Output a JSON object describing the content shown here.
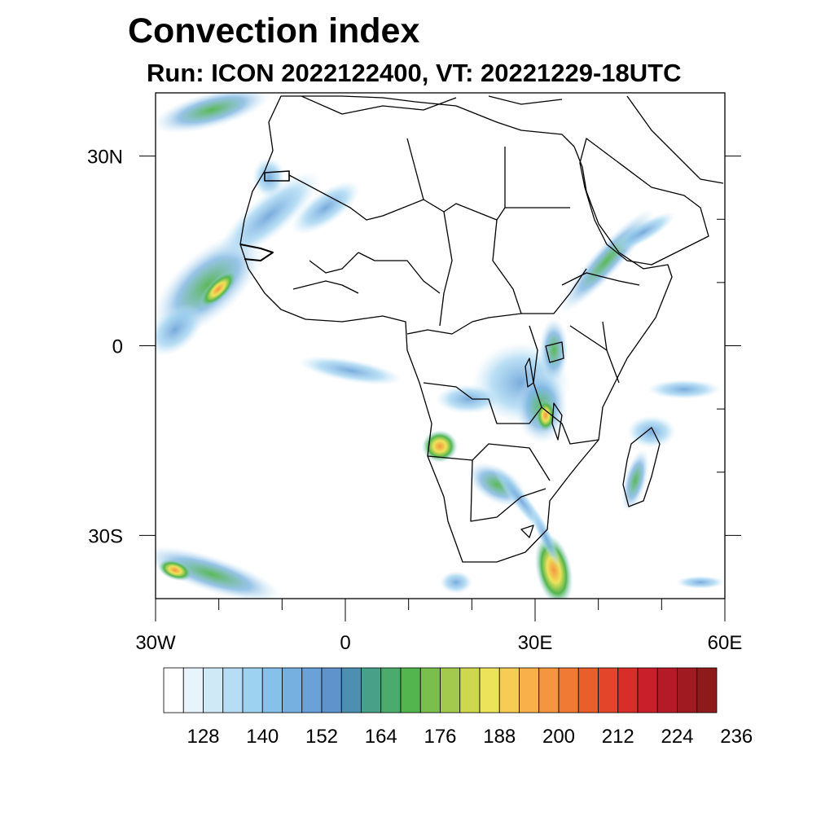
{
  "title": "Convection index",
  "subtitle": "Run: ICON 2022122400,  VT: 20221229-18UTC",
  "map": {
    "lon_range": [
      -30,
      60
    ],
    "lat_range": [
      -40,
      40
    ],
    "lat_ticks": [
      {
        "value": 30,
        "label": "30N"
      },
      {
        "value": 0,
        "label": "0"
      },
      {
        "value": -30,
        "label": "30S"
      }
    ],
    "lon_ticks": [
      {
        "value": -30,
        "label": "30W"
      },
      {
        "value": 0,
        "label": "0"
      },
      {
        "value": 30,
        "label": "30E"
      },
      {
        "value": 60,
        "label": "60E"
      }
    ]
  },
  "colorbar": {
    "colors": [
      "#ffffff",
      "#e8f4fb",
      "#cfe9f7",
      "#b6ddf3",
      "#9dd2f1",
      "#86c1ea",
      "#75b0e0",
      "#6aa1d8",
      "#5e93cb",
      "#4d8fb1",
      "#49a089",
      "#4aab6c",
      "#52b54d",
      "#7abe4b",
      "#a4ca4d",
      "#cdd84f",
      "#ede35a",
      "#f7cc55",
      "#f9b04b",
      "#f69540",
      "#f07a33",
      "#ea5e2c",
      "#e24529",
      "#d92d2a",
      "#c91f2a",
      "#b51b27",
      "#a01a22",
      "#8e1a1c"
    ],
    "tick_labels": [
      "128",
      "140",
      "152",
      "164",
      "176",
      "188",
      "200",
      "212",
      "224",
      "236"
    ]
  }
}
